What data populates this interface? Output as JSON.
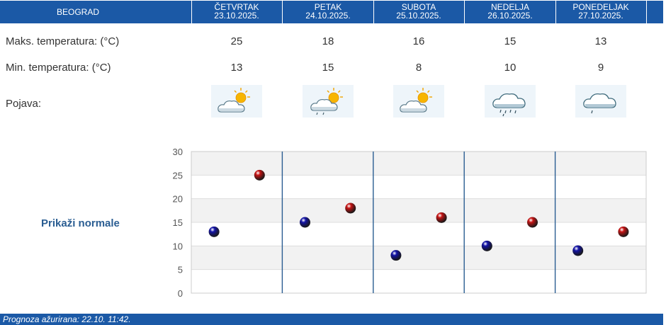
{
  "header": {
    "city": "BEOGRAD",
    "days": [
      {
        "name": "ČETVRTAK",
        "date": "23.10.2025."
      },
      {
        "name": "PETAK",
        "date": "24.10.2025."
      },
      {
        "name": "SUBOTA",
        "date": "25.10.2025."
      },
      {
        "name": "NEDELJA",
        "date": "26.10.2025."
      },
      {
        "name": "PONEDELJAK",
        "date": "27.10.2025."
      }
    ]
  },
  "rows": {
    "max_label": "Maks. temperatura: (°C)",
    "min_label": "Min. temperatura: (°C)",
    "phenomenon_label": "Pojava:",
    "max_values": [
      "25",
      "18",
      "16",
      "15",
      "13"
    ],
    "min_values": [
      "13",
      "15",
      "8",
      "10",
      "9"
    ],
    "icons": [
      "partly-cloudy-sun-icon",
      "partly-cloudy-sun-light-rain-icon",
      "partly-cloudy-sun-icon",
      "cloud-rain-icon",
      "cloud-light-rain-icon"
    ]
  },
  "normals_link": "Prikaži normale",
  "chart_data": {
    "type": "scatter",
    "categories": [
      "23.10.2025.",
      "24.10.2025.",
      "25.10.2025.",
      "26.10.2025.",
      "27.10.2025."
    ],
    "series": [
      {
        "color": "#1414a8",
        "values": [
          13,
          15,
          8,
          10,
          9
        ]
      },
      {
        "color": "#c81414",
        "values": [
          25,
          18,
          16,
          15,
          13
        ]
      }
    ],
    "ylim": [
      0,
      30
    ],
    "yticks": [
      "0",
      "5",
      "10",
      "15",
      "20",
      "25",
      "30"
    ],
    "grid": true
  },
  "footer": {
    "updated": "Prognoza ažurirana:  22.10. 11:42."
  }
}
